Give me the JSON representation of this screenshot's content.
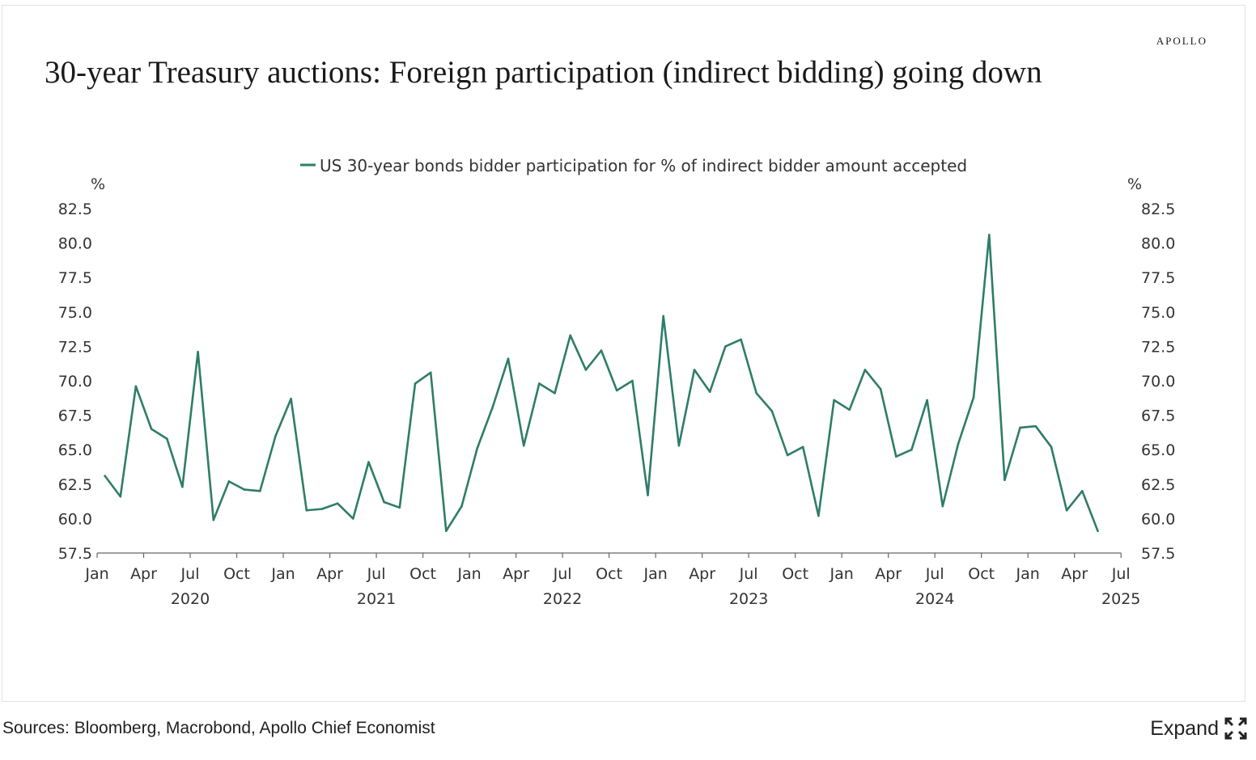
{
  "brand": "APOLLO",
  "title": "30-year Treasury auctions: Foreign participation (indirect bidding) going down",
  "footer": {
    "sources": "Sources: Bloomberg, Macrobond, Apollo Chief Economist",
    "expand_label": "Expand",
    "expand_icon": "expand-icon"
  },
  "colors": {
    "series": "#2e7d68",
    "axis": "#666666",
    "text": "#333333"
  },
  "chart_data": {
    "type": "line",
    "title": "30-year Treasury auctions: Foreign participation (indirect bidding) going down",
    "legend": "US 30-year bonds bidder participation for % of indirect bidder amount accepted",
    "legend_position": "top-center",
    "ylabel_left": "%",
    "ylabel_right": "%",
    "ylim": [
      57.5,
      82.5
    ],
    "yticks": [
      "57.5",
      "60.0",
      "62.5",
      "65.0",
      "67.5",
      "70.0",
      "72.5",
      "75.0",
      "77.5",
      "80.0",
      "82.5"
    ],
    "x_month_ticks": [
      "Jan",
      "Apr",
      "Jul",
      "Oct",
      "Jan",
      "Apr",
      "Jul",
      "Oct",
      "Jan",
      "Apr",
      "Jul",
      "Oct",
      "Jan",
      "Apr",
      "Jul",
      "Oct",
      "Jan",
      "Apr",
      "Jul",
      "Oct",
      "Jan",
      "Apr",
      "Jul"
    ],
    "x_year_labels": [
      "2020",
      "2021",
      "2022",
      "2023",
      "2024",
      "2025"
    ],
    "x_start": "2020-01",
    "series": [
      {
        "name": "US 30-year bonds bidder participation for % of indirect bidder amount accepted",
        "values": [
          63.1,
          61.6,
          69.6,
          66.5,
          65.8,
          62.3,
          72.1,
          59.9,
          62.7,
          62.1,
          62.0,
          66.0,
          68.7,
          60.6,
          60.7,
          61.1,
          60.0,
          64.1,
          61.2,
          60.8,
          69.8,
          70.6,
          59.1,
          60.9,
          65.1,
          68.1,
          71.6,
          65.3,
          69.8,
          69.1,
          73.3,
          70.8,
          72.2,
          69.3,
          70.0,
          61.7,
          74.7,
          65.3,
          70.8,
          69.2,
          72.5,
          73.0,
          69.1,
          67.8,
          64.6,
          65.2,
          60.2,
          68.6,
          67.9,
          70.8,
          69.4,
          64.5,
          65.0,
          68.6,
          60.9,
          65.4,
          68.8,
          80.6,
          62.8,
          66.6,
          66.7,
          65.2,
          60.6,
          62.0,
          59.1
        ]
      }
    ]
  }
}
